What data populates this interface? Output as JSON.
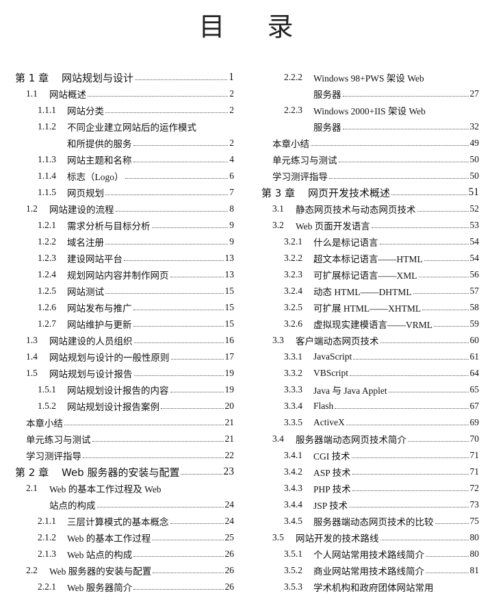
{
  "title": "目录",
  "columns": [
    [
      {
        "level": 1,
        "num": "第 1 章",
        "title": "网站规划与设计",
        "page": "1"
      },
      {
        "level": 2,
        "num": "1.1",
        "title": "网站概述",
        "page": "2"
      },
      {
        "level": 3,
        "num": "1.1.1",
        "title": "网站分类",
        "page": "2"
      },
      {
        "level": 3,
        "num": "1.1.2",
        "title": "不同企业建立网站后的运作模式",
        "page": ""
      },
      {
        "level": 3,
        "num": "",
        "title": "和所提供的服务",
        "page": "2",
        "cont": true
      },
      {
        "level": 3,
        "num": "1.1.3",
        "title": "网站主题和名称",
        "page": "4"
      },
      {
        "level": 3,
        "num": "1.1.4",
        "title": "标志（Logo）",
        "page": "6"
      },
      {
        "level": 3,
        "num": "1.1.5",
        "title": "网页规划",
        "page": "7"
      },
      {
        "level": 2,
        "num": "1.2",
        "title": "网站建设的流程",
        "page": "8"
      },
      {
        "level": 3,
        "num": "1.2.1",
        "title": "需求分析与目标分析",
        "page": "9"
      },
      {
        "level": 3,
        "num": "1.2.2",
        "title": "域名注册",
        "page": "9"
      },
      {
        "level": 3,
        "num": "1.2.3",
        "title": "建设网站平台",
        "page": "13"
      },
      {
        "level": 3,
        "num": "1.2.4",
        "title": "规划网站内容并制作网页",
        "page": "13"
      },
      {
        "level": 3,
        "num": "1.2.5",
        "title": "网站测试",
        "page": "15"
      },
      {
        "level": 3,
        "num": "1.2.6",
        "title": "网站发布与推广",
        "page": "15"
      },
      {
        "level": 3,
        "num": "1.2.7",
        "title": "网站维护与更新",
        "page": "15"
      },
      {
        "level": 2,
        "num": "1.3",
        "title": "网站建设的人员组织",
        "page": "16"
      },
      {
        "level": 2,
        "num": "1.4",
        "title": "网站规划与设计的一般性原则",
        "page": "17"
      },
      {
        "level": 2,
        "num": "1.5",
        "title": "网站规划与设计报告",
        "page": "19"
      },
      {
        "level": 3,
        "num": "1.5.1",
        "title": "网站规划设计报告的内容",
        "page": "19"
      },
      {
        "level": 3,
        "num": "1.5.2",
        "title": "网站规划设计报告案例",
        "page": "20"
      },
      {
        "level": 0,
        "num": "",
        "title": "本章小结",
        "page": "21"
      },
      {
        "level": 0,
        "num": "",
        "title": "单元练习与测试",
        "page": "21"
      },
      {
        "level": 0,
        "num": "",
        "title": "学习测评指导",
        "page": "22"
      },
      {
        "level": 1,
        "num": "第 2 章",
        "title": "Web 服务器的安装与配置",
        "page": "23"
      },
      {
        "level": 2,
        "num": "2.1",
        "title": "Web 的基本工作过程及 Web",
        "page": ""
      },
      {
        "level": 2,
        "num": "",
        "title": "站点的构成",
        "page": "24",
        "cont": true
      },
      {
        "level": 3,
        "num": "2.1.1",
        "title": "三层计算模式的基本概念",
        "page": "24"
      },
      {
        "level": 3,
        "num": "2.1.2",
        "title": "Web 的基本工作过程",
        "page": "25"
      },
      {
        "level": 3,
        "num": "2.1.3",
        "title": "Web 站点的构成",
        "page": "26"
      },
      {
        "level": 2,
        "num": "2.2",
        "title": "Web 服务器的安装与配置",
        "page": "26"
      },
      {
        "level": 3,
        "num": "2.2.1",
        "title": "Web 服务器简介",
        "page": "26"
      }
    ],
    [
      {
        "level": 3,
        "num": "2.2.2",
        "title": "Windows 98+PWS 架设 Web",
        "page": ""
      },
      {
        "level": 3,
        "num": "",
        "title": "服务器",
        "page": "27",
        "cont": true
      },
      {
        "level": 3,
        "num": "2.2.3",
        "title": "Windows 2000+IIS 架设 Web",
        "page": ""
      },
      {
        "level": 3,
        "num": "",
        "title": "服务器",
        "page": "32",
        "cont": true
      },
      {
        "level": 0,
        "num": "",
        "title": "本章小结",
        "page": "49"
      },
      {
        "level": 0,
        "num": "",
        "title": "单元练习与测试",
        "page": "50"
      },
      {
        "level": 0,
        "num": "",
        "title": "学习测评指导",
        "page": "50"
      },
      {
        "level": 1,
        "num": "第 3 章",
        "title": "网页开发技术概述",
        "page": "51"
      },
      {
        "level": 2,
        "num": "3.1",
        "title": "静态网页技术与动态网页技术",
        "page": "52"
      },
      {
        "level": 2,
        "num": "3.2",
        "title": "Web 页面开发语言",
        "page": "53"
      },
      {
        "level": 3,
        "num": "3.2.1",
        "title": "什么是标记语言",
        "page": "54"
      },
      {
        "level": 3,
        "num": "3.2.2",
        "title": "超文本标记语言——HTML",
        "page": "54"
      },
      {
        "level": 3,
        "num": "3.2.3",
        "title": "可扩展标记语言——XML",
        "page": "56"
      },
      {
        "level": 3,
        "num": "3.2.4",
        "title": "动态 HTML——DHTML",
        "page": "57"
      },
      {
        "level": 3,
        "num": "3.2.5",
        "title": "可扩展 HTML——XHTML",
        "page": "58"
      },
      {
        "level": 3,
        "num": "3.2.6",
        "title": "虚拟现实建模语言——VRML",
        "page": "59"
      },
      {
        "level": 2,
        "num": "3.3",
        "title": "客户端动态网页技术",
        "page": "60"
      },
      {
        "level": 3,
        "num": "3.3.1",
        "title": "JavaScript",
        "page": "61"
      },
      {
        "level": 3,
        "num": "3.3.2",
        "title": "VBScript",
        "page": "64"
      },
      {
        "level": 3,
        "num": "3.3.3",
        "title": "Java 与 Java Applet",
        "page": "65"
      },
      {
        "level": 3,
        "num": "3.3.4",
        "title": "Flash",
        "page": "67"
      },
      {
        "level": 3,
        "num": "3.3.5",
        "title": "ActiveX",
        "page": "69"
      },
      {
        "level": 2,
        "num": "3.4",
        "title": "服务器端动态网页技术简介",
        "page": "70"
      },
      {
        "level": 3,
        "num": "3.4.1",
        "title": "CGI 技术",
        "page": "71"
      },
      {
        "level": 3,
        "num": "3.4.2",
        "title": "ASP 技术",
        "page": "71"
      },
      {
        "level": 3,
        "num": "3.4.3",
        "title": "PHP 技术",
        "page": "72"
      },
      {
        "level": 3,
        "num": "3.4.4",
        "title": "JSP 技术",
        "page": "73"
      },
      {
        "level": 3,
        "num": "3.4.5",
        "title": "服务器端动态网页技术的比较",
        "page": "75"
      },
      {
        "level": 2,
        "num": "3.5",
        "title": "网站开发的技术路线",
        "page": "80"
      },
      {
        "level": 3,
        "num": "3.5.1",
        "title": "个人网站常用技术路线简介",
        "page": "80"
      },
      {
        "level": 3,
        "num": "3.5.2",
        "title": "商业网站常用技术路线简介",
        "page": "81"
      },
      {
        "level": 3,
        "num": "3.5.3",
        "title": "学术机构和政府团体网站常用",
        "page": ""
      }
    ]
  ]
}
